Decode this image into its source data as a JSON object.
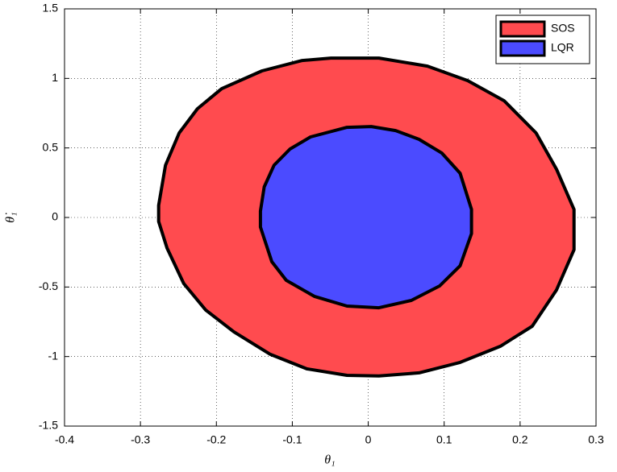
{
  "chart_data": {
    "type": "fill",
    "x_label": "θ₁",
    "y_label": "θ̇₁",
    "xlim": [
      -0.4,
      0.3
    ],
    "ylim": [
      -1.5,
      1.5
    ],
    "xticks": [
      -0.4,
      -0.3,
      -0.2,
      -0.1,
      0,
      0.1,
      0.2,
      0.3
    ],
    "yticks": [
      -1.5,
      -1,
      -0.5,
      0,
      0.5,
      1,
      1.5
    ],
    "grid": true,
    "legend": "upper right",
    "series": [
      {
        "name": "SOS",
        "color": "#ff4b4f",
        "x": [
          -0.276,
          -0.267,
          -0.249,
          -0.225,
          -0.193,
          -0.14,
          -0.087,
          -0.049,
          0.014,
          0.078,
          0.131,
          0.179,
          0.221,
          0.248,
          0.271,
          0.271,
          0.248,
          0.216,
          0.174,
          0.121,
          0.067,
          0.014,
          -0.028,
          -0.081,
          -0.129,
          -0.177,
          -0.214,
          -0.243,
          -0.265,
          -0.276
        ],
        "y": [
          0.087,
          0.376,
          0.608,
          0.782,
          0.926,
          1.054,
          1.129,
          1.146,
          1.146,
          1.088,
          0.984,
          0.839,
          0.608,
          0.347,
          0.058,
          -0.232,
          -0.521,
          -0.782,
          -0.926,
          -1.042,
          -1.117,
          -1.14,
          -1.135,
          -1.088,
          -0.984,
          -0.822,
          -0.666,
          -0.475,
          -0.22,
          -0.029
        ]
      },
      {
        "name": "LQR",
        "color": "#4b4bff",
        "x": [
          -0.142,
          -0.137,
          -0.124,
          -0.103,
          -0.076,
          -0.028,
          0.004,
          0.036,
          0.067,
          0.097,
          0.121,
          0.136,
          0.136,
          0.121,
          0.094,
          0.057,
          0.014,
          -0.028,
          -0.071,
          -0.108,
          -0.127,
          -0.142
        ],
        "y": [
          0.046,
          0.22,
          0.376,
          0.492,
          0.579,
          0.648,
          0.654,
          0.625,
          0.562,
          0.463,
          0.318,
          0.058,
          -0.116,
          -0.347,
          -0.492,
          -0.596,
          -0.649,
          -0.637,
          -0.567,
          -0.452,
          -0.318,
          -0.069
        ]
      }
    ]
  }
}
